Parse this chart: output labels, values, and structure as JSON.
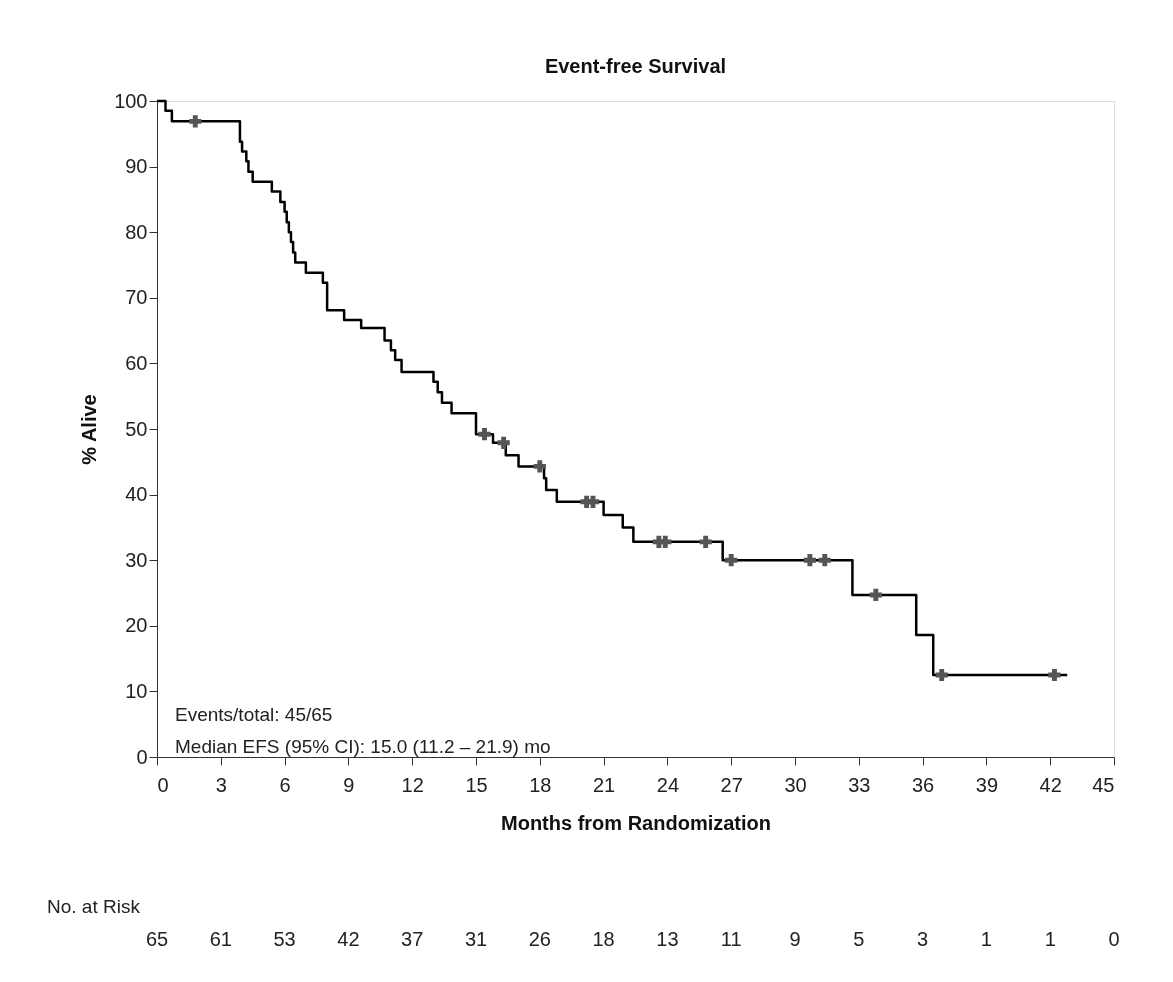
{
  "chart_data": {
    "type": "step",
    "title": "Event-free Survival",
    "xlabel": "Months from Randomization",
    "ylabel": "% Alive",
    "xlim": [
      0,
      45
    ],
    "xticks": [
      0,
      3,
      6,
      9,
      12,
      15,
      18,
      21,
      24,
      27,
      30,
      33,
      36,
      39,
      42,
      45
    ],
    "ylim": [
      0,
      100
    ],
    "yticks": [
      0,
      10,
      20,
      30,
      40,
      50,
      60,
      70,
      80,
      90,
      100
    ],
    "grid": false,
    "legend": false,
    "series": [
      {
        "color": "#000000",
        "x": [
          0,
          0.4,
          0.7,
          3.9,
          4.0,
          4.2,
          4.3,
          4.5,
          5.4,
          5.8,
          6.0,
          6.1,
          6.2,
          6.3,
          6.4,
          6.5,
          7.0,
          7.8,
          8.0,
          8.8,
          9.6,
          10.7,
          11.0,
          11.2,
          11.5,
          13.0,
          13.2,
          13.4,
          13.85,
          15.0,
          15.8,
          16.4,
          17.0,
          18.2,
          18.3,
          18.8,
          21.0,
          21.9,
          22.4,
          26.6,
          32.7,
          35.7,
          36.5,
          42.8
        ],
        "values": [
          100,
          98.5,
          96.9,
          93.8,
          92.3,
          90.8,
          89.2,
          87.7,
          86.2,
          84.6,
          83.1,
          81.5,
          80.0,
          78.5,
          76.9,
          75.4,
          73.8,
          72.3,
          68.1,
          66.6,
          65.4,
          63.5,
          62.0,
          60.5,
          58.7,
          57.2,
          55.6,
          54.0,
          52.4,
          49.2,
          47.9,
          46.0,
          44.3,
          42.5,
          40.7,
          38.9,
          36.9,
          35.0,
          32.8,
          30.0,
          24.7,
          18.6,
          12.5,
          12.5
        ]
      },
      {
        "type": "scatter",
        "color": "#555555",
        "marker": "cross",
        "x": [
          1.8,
          15.4,
          16.3,
          18.0,
          20.2,
          20.5,
          23.6,
          23.9,
          25.8,
          27.0,
          30.7,
          31.4,
          33.8,
          36.9,
          42.2
        ],
        "values": [
          96.9,
          49.2,
          47.9,
          44.3,
          38.9,
          38.9,
          32.8,
          32.8,
          32.8,
          30.0,
          30.0,
          30.0,
          24.7,
          12.5,
          12.5
        ]
      }
    ],
    "annotations": [
      "Events/total: 45/65",
      "Median EFS (95% CI): 15.0 (11.2 – 21.9) mo",
      "No. at Risk",
      "65",
      "61",
      "53",
      "42",
      "37",
      "31",
      "26",
      "18",
      "13",
      "11",
      "9",
      "5",
      "3",
      "1",
      "1",
      "0"
    ]
  }
}
